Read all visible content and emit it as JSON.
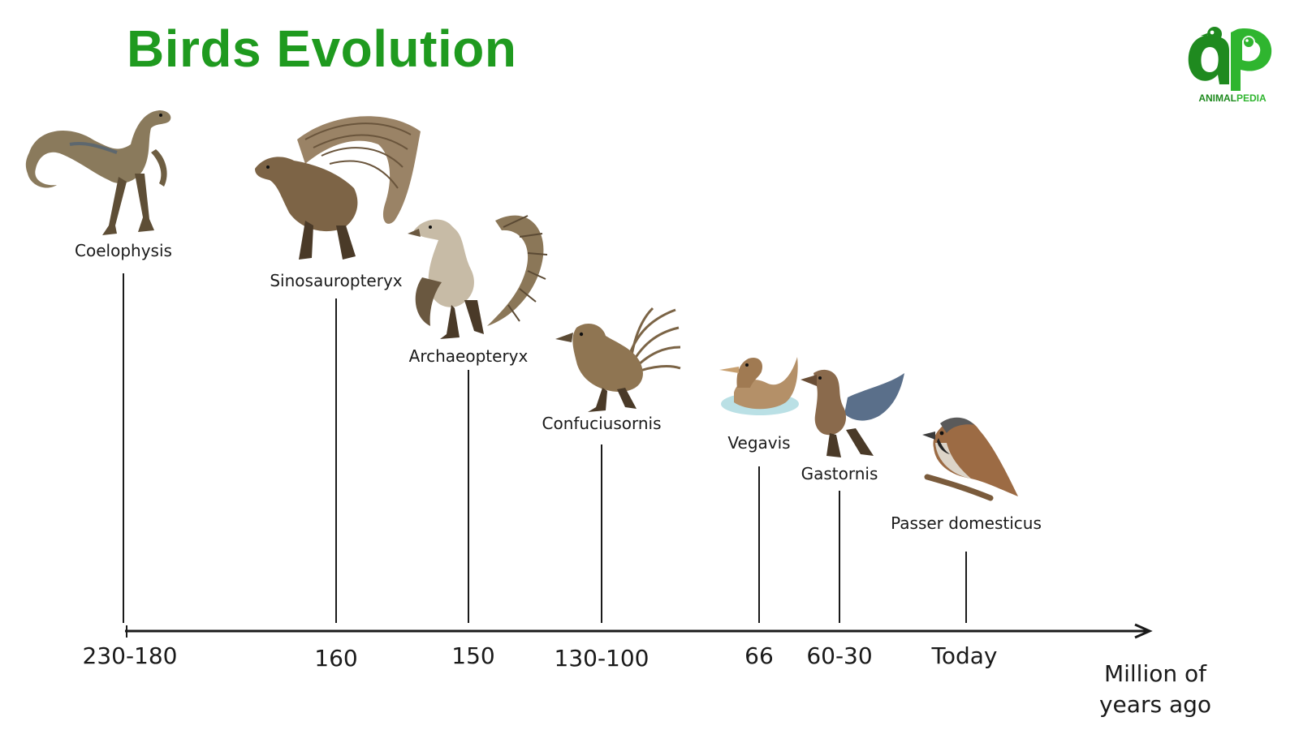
{
  "title": "Birds Evolution",
  "logo": {
    "brand_part1": "ANIMAL",
    "brand_part2": "PEDIA",
    "icon": "animalpedia-ap-logo-icon",
    "color_primary": "#1f8a1f",
    "color_secondary": "#2fb52f"
  },
  "colors": {
    "title": "#1f9a1f",
    "axis": "#1a1a1a"
  },
  "timeline": {
    "unit_label_line1": "Million of",
    "unit_label_line2": "years ago",
    "species": [
      {
        "name": "Coelophysis",
        "time": "230-180",
        "illustration": "coelophysis-illustration"
      },
      {
        "name": "Sinosauropteryx",
        "time": "160",
        "illustration": "sinosauropteryx-illustration"
      },
      {
        "name": "Archaeopteryx",
        "time": "150",
        "illustration": "archaeopteryx-illustration"
      },
      {
        "name": "Confuciusornis",
        "time": "130-100",
        "illustration": "confuciusornis-illustration"
      },
      {
        "name": "Vegavis",
        "time": "66",
        "illustration": "vegavis-illustration"
      },
      {
        "name": "Gastornis",
        "time": "60-30",
        "illustration": "gastornis-illustration"
      },
      {
        "name": "Passer domesticus",
        "time": "Today",
        "illustration": "passer-domesticus-illustration"
      }
    ]
  }
}
